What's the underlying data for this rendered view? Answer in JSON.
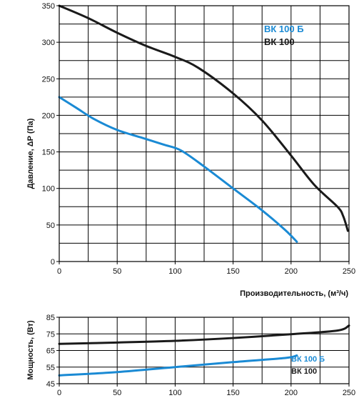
{
  "chart_data": [
    {
      "type": "line",
      "xlabel": "Производительность, (м³/ч)",
      "ylabel": "Давление, ΔР (Па)",
      "xlim": [
        0,
        250
      ],
      "ylim": [
        0,
        350
      ],
      "x_ticks": [
        0,
        50,
        100,
        150,
        200,
        250
      ],
      "y_ticks": [
        0,
        50,
        100,
        150,
        200,
        250,
        300,
        350
      ],
      "grid": true,
      "legend_position": "top-right",
      "series": [
        {
          "name": "ВК 100 Б",
          "color": "#1a8ad4",
          "points": [
            [
              0,
              225
            ],
            [
              15,
              210
            ],
            [
              30,
              195
            ],
            [
              50,
              180
            ],
            [
              70,
              170
            ],
            [
              90,
              160
            ],
            [
              105,
              152
            ],
            [
              125,
              130
            ],
            [
              150,
              100
            ],
            [
              175,
              70
            ],
            [
              195,
              43
            ],
            [
              205,
              27
            ]
          ]
        },
        {
          "name": "ВК 100",
          "color": "#1a1a1a",
          "points": [
            [
              0,
              350
            ],
            [
              25,
              333
            ],
            [
              50,
              313
            ],
            [
              75,
              295
            ],
            [
              100,
              280
            ],
            [
              120,
              265
            ],
            [
              150,
              230
            ],
            [
              175,
              193
            ],
            [
              200,
              145
            ],
            [
              220,
              105
            ],
            [
              240,
              75
            ],
            [
              245,
              62
            ],
            [
              249,
              42
            ]
          ]
        }
      ]
    },
    {
      "type": "line",
      "xlabel": "",
      "ylabel": "Мощность, (Вт)",
      "xlim": [
        0,
        250
      ],
      "ylim": [
        45,
        85
      ],
      "x_ticks": [
        0,
        50,
        100,
        150,
        200,
        250
      ],
      "y_ticks": [
        45,
        55,
        65,
        75,
        85
      ],
      "grid": true,
      "legend_position": "bottom-right",
      "series": [
        {
          "name": "ВК 100 Б",
          "color": "#1a8ad4",
          "points": [
            [
              0,
              50
            ],
            [
              50,
              52
            ],
            [
              100,
              55
            ],
            [
              150,
              58
            ],
            [
              195,
              60.5
            ],
            [
              205,
              62
            ]
          ]
        },
        {
          "name": "ВК 100",
          "color": "#1a1a1a",
          "points": [
            [
              0,
              69
            ],
            [
              50,
              69.8
            ],
            [
              100,
              70.8
            ],
            [
              150,
              72.5
            ],
            [
              200,
              74.8
            ],
            [
              240,
              77
            ],
            [
              250,
              80
            ]
          ]
        }
      ]
    }
  ]
}
